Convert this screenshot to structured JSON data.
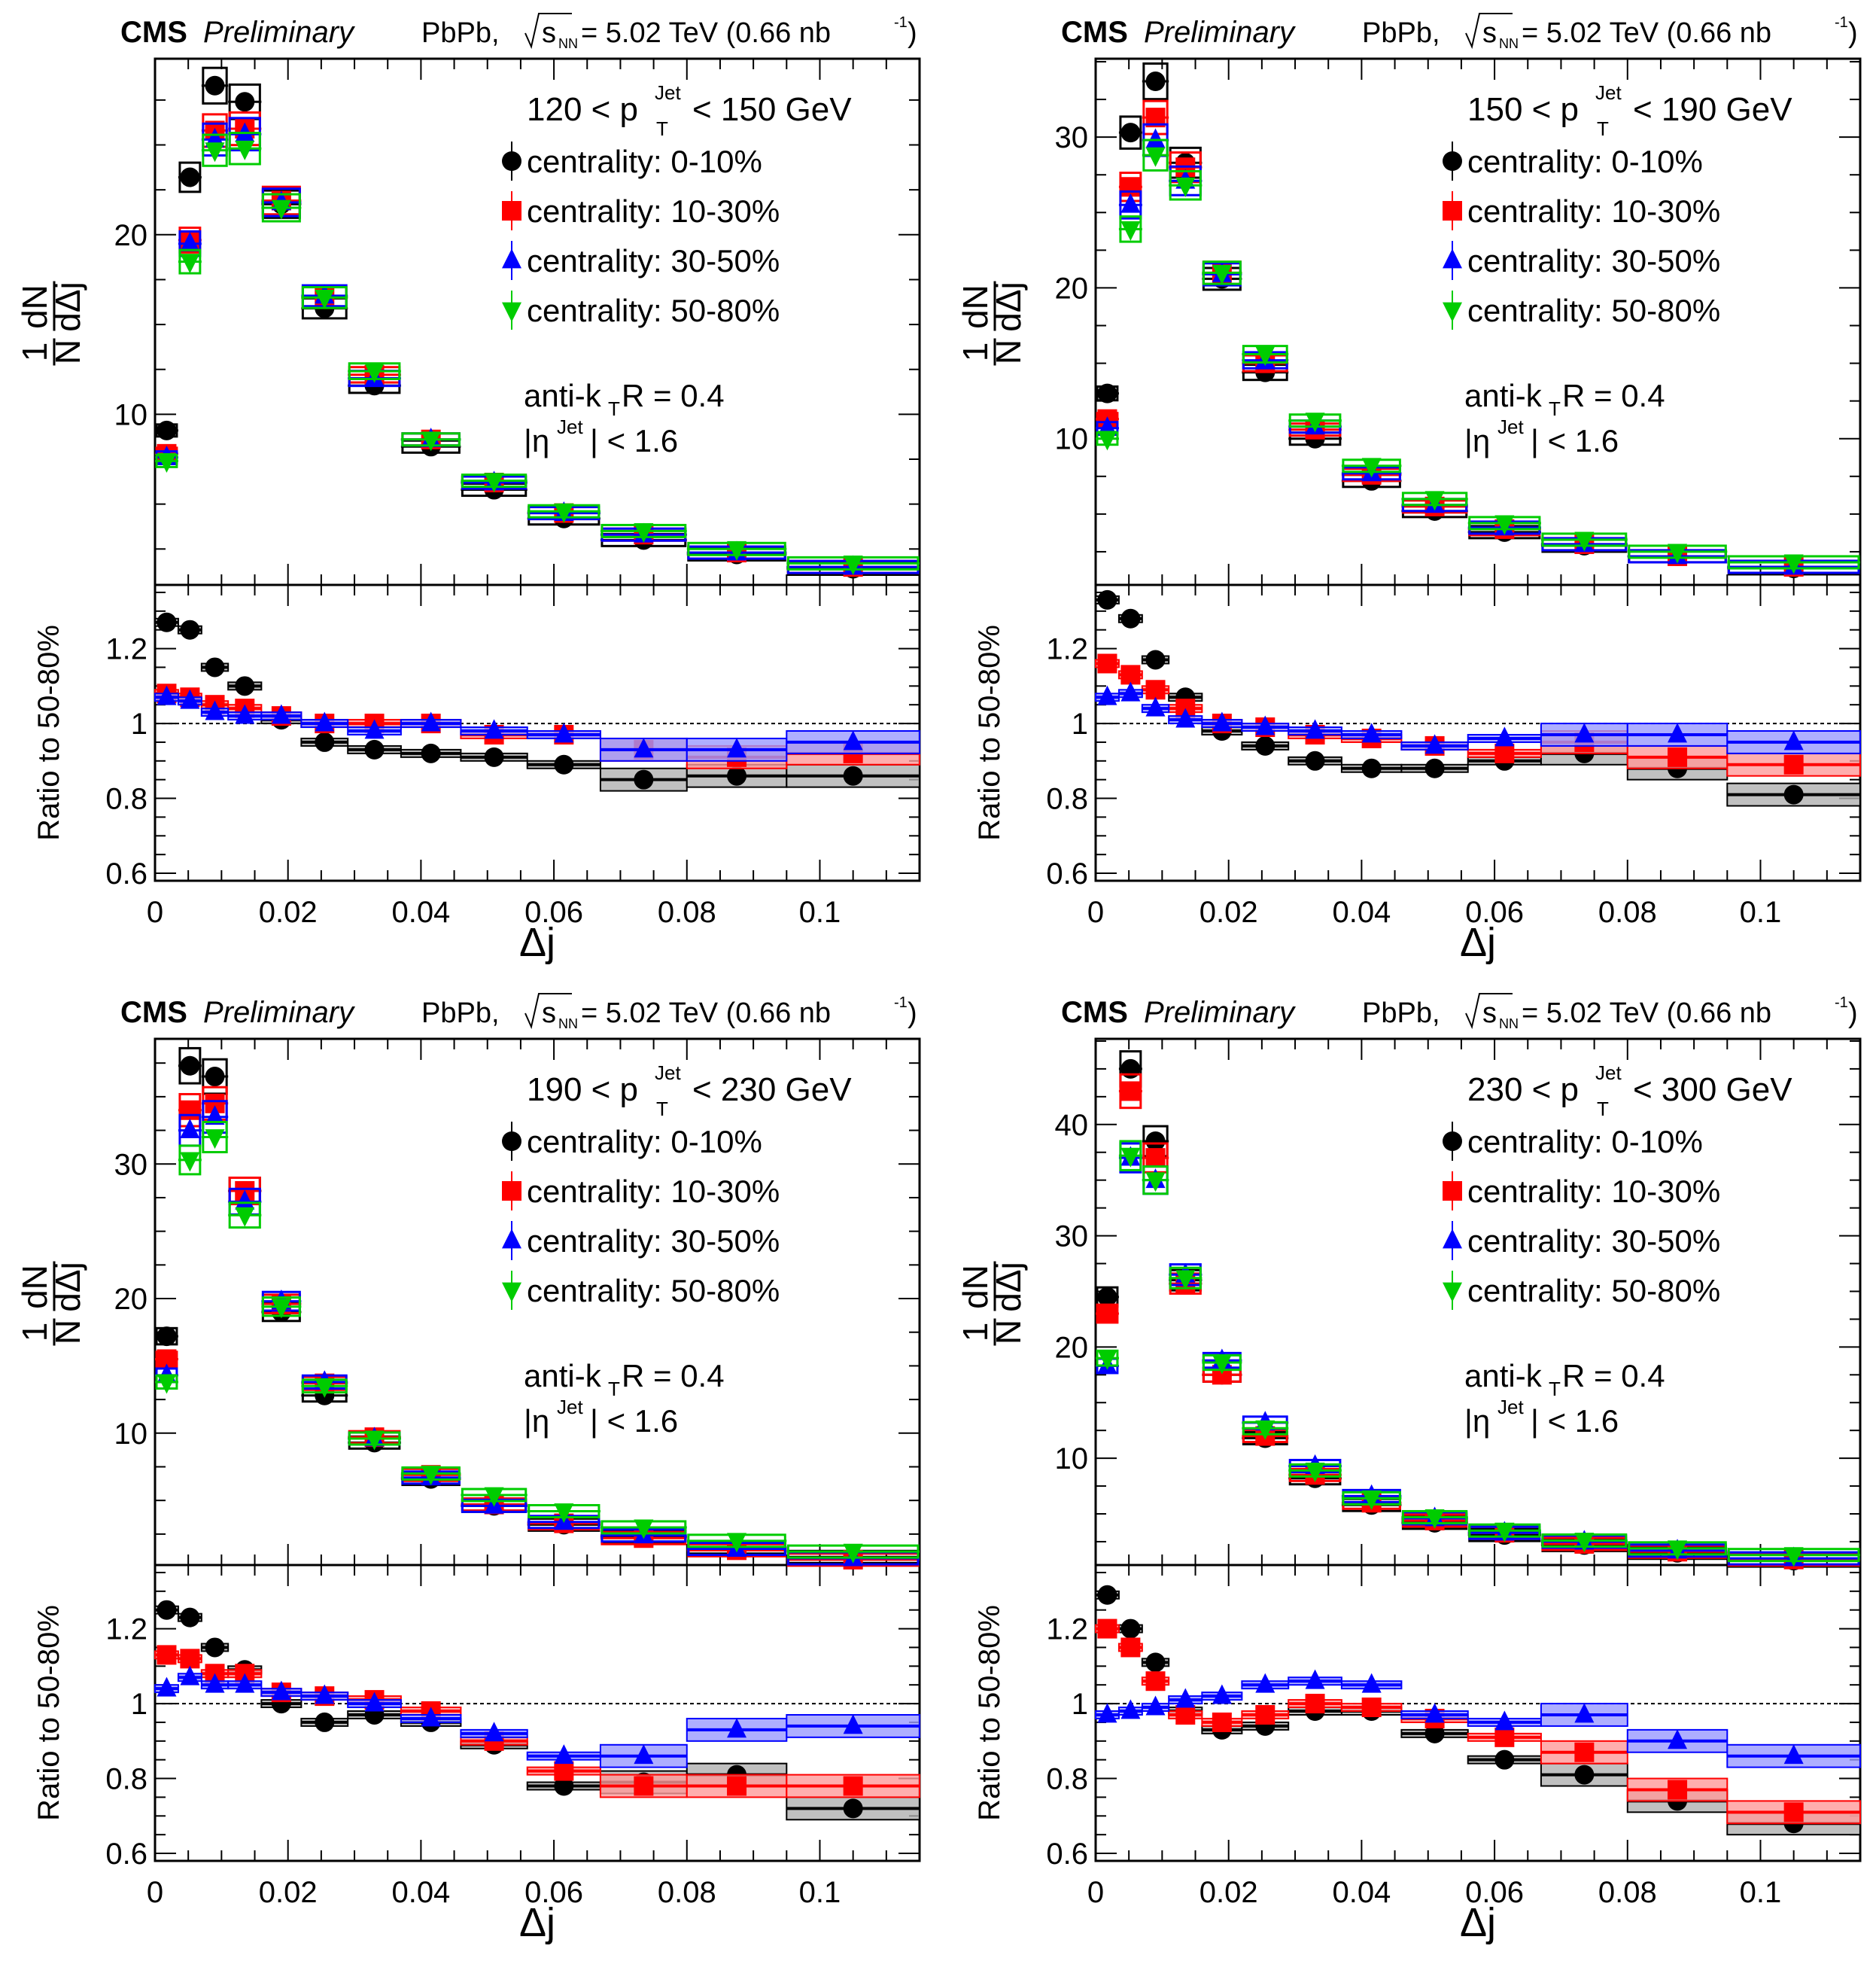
{
  "figure": {
    "experiment_label": "CMS",
    "status_label": "Preliminary",
    "system_label": "PbPb,",
    "energy_label": "= 5.02 TeV (0.66 nb",
    "energy_sqrt_symbol": "s",
    "energy_subscript": "NN",
    "energy_lumi_sup": "-1",
    "energy_close": ")",
    "jet_algo_label": "anti-k",
    "jet_algo_sub": "T",
    "jet_algo_rest": " R = 0.4",
    "eta_label_pre": "|η",
    "eta_label_sup": "Jet",
    "eta_label_post": "| < 1.6",
    "ylabel_main": "1/N dN/dΔj",
    "ylabel_ratio": "Ratio to 50-80%",
    "xlabel": "Δj"
  },
  "legend": [
    {
      "label": "centrality: 0-10%",
      "color": "#000000",
      "marker": "circle"
    },
    {
      "label": "centrality: 10-30%",
      "color": "#ff0000",
      "marker": "square"
    },
    {
      "label": "centrality: 30-50%",
      "color": "#0000ff",
      "marker": "triangle-up"
    },
    {
      "label": "centrality: 50-80%",
      "color": "#00cc00",
      "marker": "triangle-down"
    }
  ],
  "chart_data": [
    {
      "type": "scatter",
      "title": "120 < pT^Jet < 150 GeV",
      "pt_low": "120",
      "pt_high": "150 GeV",
      "xlabel": "Δj",
      "ylabel": "1/N dN/dΔj",
      "xlim": [
        0,
        0.115
      ],
      "ylim": [
        0.5,
        29.8
      ],
      "yticks": [
        10,
        20
      ],
      "ratio_ylim": [
        0.58,
        1.37
      ],
      "ratio_yticks": [
        0.6,
        0.8,
        1,
        1.2
      ],
      "xticks": [
        0,
        0.02,
        0.04,
        0.06,
        0.08,
        0.1
      ],
      "bin_edges": [
        0,
        0.0035,
        0.007,
        0.011,
        0.016,
        0.022,
        0.029,
        0.037,
        0.046,
        0.056,
        0.067,
        0.08,
        0.095,
        0.115
      ],
      "series": [
        {
          "name": "centrality: 0-10%",
          "values": [
            9.1,
            23.2,
            28.3,
            27.4,
            21.7,
            15.9,
            11.6,
            8.2,
            5.8,
            4.2,
            3.0,
            2.2,
            1.4
          ]
        },
        {
          "name": "centrality: 10-30%",
          "values": [
            7.8,
            19.7,
            25.8,
            25.9,
            21.9,
            16.5,
            12.2,
            8.6,
            6.2,
            4.5,
            3.3,
            2.3,
            1.5
          ]
        },
        {
          "name": "centrality: 30-50%",
          "values": [
            7.6,
            19.5,
            25.3,
            25.6,
            21.8,
            16.6,
            12.0,
            8.6,
            6.2,
            4.5,
            3.3,
            2.3,
            1.5
          ]
        },
        {
          "name": "centrality: 50-80%",
          "values": [
            7.4,
            18.5,
            24.7,
            24.8,
            21.5,
            16.5,
            12.4,
            8.6,
            6.3,
            4.6,
            3.5,
            2.5,
            1.7
          ]
        }
      ],
      "ratio_series": [
        {
          "name": "centrality: 0-10%",
          "values": [
            1.27,
            1.25,
            1.15,
            1.1,
            1.01,
            0.95,
            0.93,
            0.92,
            0.91,
            0.89,
            0.85,
            0.86,
            0.86
          ]
        },
        {
          "name": "centrality: 10-30%",
          "values": [
            1.08,
            1.07,
            1.05,
            1.04,
            1.02,
            1.0,
            1.0,
            1.0,
            0.97,
            0.97,
            0.93,
            0.91,
            0.92
          ]
        },
        {
          "name": "centrality: 30-50%",
          "values": [
            1.07,
            1.06,
            1.03,
            1.02,
            1.02,
            1.0,
            0.98,
            1.0,
            0.98,
            0.97,
            0.93,
            0.93,
            0.95
          ]
        }
      ]
    },
    {
      "type": "scatter",
      "title": "150 < pT^Jet < 190 GeV",
      "pt_low": "150",
      "pt_high": "190 GeV",
      "xlabel": "Δj",
      "ylabel": "1/N dN/dΔj",
      "xlim": [
        0,
        0.115
      ],
      "ylim": [
        0.3,
        35.2
      ],
      "yticks": [
        10,
        20,
        30
      ],
      "ratio_ylim": [
        0.58,
        1.37
      ],
      "ratio_yticks": [
        0.6,
        0.8,
        1,
        1.2
      ],
      "xticks": [
        0,
        0.02,
        0.04,
        0.06,
        0.08,
        0.1
      ],
      "bin_edges": [
        0,
        0.0035,
        0.007,
        0.011,
        0.016,
        0.022,
        0.029,
        0.037,
        0.046,
        0.056,
        0.067,
        0.08,
        0.095,
        0.115
      ],
      "series": [
        {
          "name": "centrality: 0-10%",
          "values": [
            13.0,
            30.3,
            33.7,
            28.3,
            20.6,
            14.4,
            10.0,
            7.2,
            5.2,
            3.8,
            2.9,
            2.2,
            1.4
          ]
        },
        {
          "name": "centrality: 10-30%",
          "values": [
            11.3,
            26.7,
            31.3,
            28.0,
            21.0,
            15.0,
            10.6,
            7.6,
            5.5,
            4.0,
            3.0,
            2.2,
            1.5
          ]
        },
        {
          "name": "centrality: 30-50%",
          "values": [
            10.7,
            25.5,
            29.8,
            27.1,
            20.9,
            15.2,
            10.8,
            7.7,
            5.6,
            4.1,
            3.0,
            2.2,
            1.5
          ]
        },
        {
          "name": "centrality: 50-80%",
          "values": [
            10.0,
            23.9,
            28.8,
            26.8,
            21.0,
            15.6,
            11.2,
            8.2,
            6.0,
            4.4,
            3.3,
            2.5,
            1.8
          ]
        }
      ],
      "ratio_series": [
        {
          "name": "centrality: 0-10%",
          "values": [
            1.33,
            1.28,
            1.17,
            1.07,
            0.98,
            0.94,
            0.9,
            0.88,
            0.88,
            0.9,
            0.92,
            0.88,
            0.81
          ]
        },
        {
          "name": "centrality: 10-30%",
          "values": [
            1.16,
            1.13,
            1.09,
            1.04,
            1.0,
            0.99,
            0.97,
            0.96,
            0.94,
            0.92,
            0.95,
            0.91,
            0.89
          ]
        },
        {
          "name": "centrality: 30-50%",
          "values": [
            1.07,
            1.08,
            1.04,
            1.01,
            1.0,
            0.99,
            0.98,
            0.97,
            0.94,
            0.96,
            0.97,
            0.97,
            0.95
          ]
        }
      ]
    },
    {
      "type": "scatter",
      "title": "190 < pT^Jet < 230 GeV",
      "pt_low": "190",
      "pt_high": "230 GeV",
      "xlabel": "Δj",
      "ylabel": "1/N dN/dΔj",
      "xlim": [
        0,
        0.115
      ],
      "ylim": [
        0.2,
        39.3
      ],
      "yticks": [
        10,
        20,
        30
      ],
      "ratio_ylim": [
        0.58,
        1.37
      ],
      "ratio_yticks": [
        0.6,
        0.8,
        1,
        1.2
      ],
      "xticks": [
        0,
        0.02,
        0.04,
        0.06,
        0.08,
        0.1
      ],
      "bin_edges": [
        0,
        0.0035,
        0.007,
        0.011,
        0.016,
        0.022,
        0.029,
        0.037,
        0.046,
        0.056,
        0.067,
        0.08,
        0.095,
        0.115
      ],
      "series": [
        {
          "name": "centrality: 0-10%",
          "values": [
            17.2,
            37.3,
            36.5,
            28.0,
            19.0,
            12.8,
            9.3,
            6.6,
            4.6,
            3.2,
            2.3,
            1.5,
            0.8
          ]
        },
        {
          "name": "centrality: 10-30%",
          "values": [
            15.5,
            34.0,
            34.5,
            28.0,
            19.6,
            13.7,
            9.7,
            6.9,
            4.7,
            3.3,
            2.2,
            1.3,
            0.6
          ]
        },
        {
          "name": "centrality: 30-50%",
          "values": [
            14.3,
            32.5,
            33.5,
            27.2,
            19.8,
            13.8,
            9.6,
            6.7,
            4.6,
            3.4,
            2.4,
            1.4,
            0.7
          ]
        },
        {
          "name": "centrality: 50-80%",
          "values": [
            13.8,
            30.3,
            32.0,
            26.2,
            19.4,
            13.5,
            9.6,
            7.0,
            5.4,
            4.2,
            3.0,
            2.0,
            1.2
          ]
        }
      ],
      "ratio_series": [
        {
          "name": "centrality: 0-10%",
          "values": [
            1.25,
            1.23,
            1.15,
            1.09,
            1.0,
            0.95,
            0.97,
            0.95,
            0.89,
            0.78,
            0.79,
            0.81,
            0.72
          ]
        },
        {
          "name": "centrality: 10-30%",
          "values": [
            1.13,
            1.12,
            1.08,
            1.08,
            1.03,
            1.02,
            1.01,
            0.98,
            0.9,
            0.82,
            0.78,
            0.78,
            0.78
          ]
        },
        {
          "name": "centrality: 30-50%",
          "values": [
            1.04,
            1.07,
            1.05,
            1.05,
            1.03,
            1.02,
            1.0,
            0.96,
            0.92,
            0.86,
            0.86,
            0.93,
            0.94
          ]
        }
      ]
    },
    {
      "type": "scatter",
      "title": "230 < pT^Jet < 300 GeV",
      "pt_low": "230",
      "pt_high": "300 GeV",
      "xlabel": "Δj",
      "ylabel": "1/N dN/dΔj",
      "xlim": [
        0,
        0.115
      ],
      "ylim": [
        0.4,
        47.7
      ],
      "yticks": [
        10,
        20,
        30,
        40
      ],
      "ratio_ylim": [
        0.58,
        1.37
      ],
      "ratio_yticks": [
        0.6,
        0.8,
        1,
        1.2
      ],
      "xticks": [
        0,
        0.02,
        0.04,
        0.06,
        0.08,
        0.1
      ],
      "bin_edges": [
        0,
        0.0035,
        0.007,
        0.011,
        0.016,
        0.022,
        0.029,
        0.037,
        0.046,
        0.056,
        0.067,
        0.08,
        0.095,
        0.115
      ],
      "series": [
        {
          "name": "centrality: 0-10%",
          "values": [
            24.5,
            45.0,
            38.5,
            26.0,
            17.5,
            11.8,
            8.2,
            5.8,
            4.2,
            3.1,
            2.2,
            1.5,
            0.8
          ]
        },
        {
          "name": "centrality: 10-30%",
          "values": [
            23.0,
            43.0,
            37.0,
            25.7,
            17.5,
            12.0,
            8.5,
            6.0,
            4.4,
            3.3,
            2.3,
            1.6,
            0.9
          ]
        },
        {
          "name": "centrality: 30-50%",
          "values": [
            18.3,
            37.0,
            35.0,
            26.5,
            18.8,
            13.2,
            9.3,
            6.6,
            4.6,
            3.3,
            2.5,
            1.7,
            1.0
          ]
        },
        {
          "name": "centrality: 50-80%",
          "values": [
            19.0,
            37.2,
            35.0,
            26.2,
            18.6,
            12.7,
            8.9,
            6.4,
            4.7,
            3.5,
            2.6,
            1.9,
            1.3
          ]
        }
      ],
      "ratio_series": [
        {
          "name": "centrality: 0-10%",
          "values": [
            1.29,
            1.2,
            1.11,
            0.98,
            0.93,
            0.94,
            0.98,
            0.98,
            0.92,
            0.85,
            0.81,
            0.74,
            0.68
          ]
        },
        {
          "name": "centrality: 10-30%",
          "values": [
            1.2,
            1.15,
            1.06,
            0.97,
            0.95,
            0.97,
            1.0,
            0.99,
            0.96,
            0.91,
            0.87,
            0.77,
            0.71
          ]
        },
        {
          "name": "centrality: 30-50%",
          "values": [
            0.97,
            0.98,
            0.99,
            1.01,
            1.02,
            1.05,
            1.06,
            1.05,
            0.97,
            0.95,
            0.97,
            0.9,
            0.86
          ]
        }
      ]
    }
  ]
}
